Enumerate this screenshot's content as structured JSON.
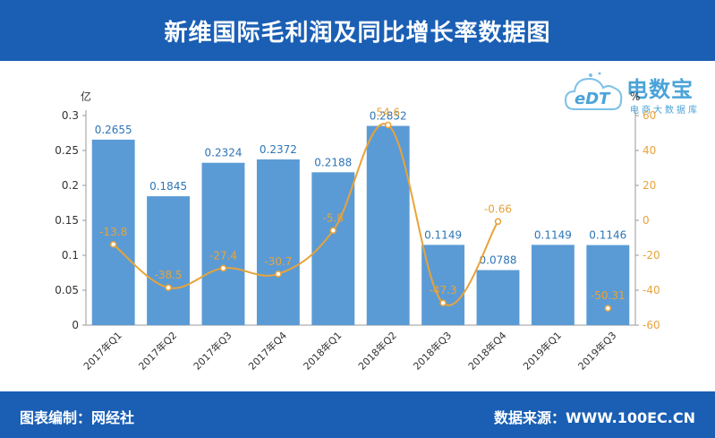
{
  "header": {
    "title": "新维国际毛利润及同比增长率数据图"
  },
  "footer": {
    "left": "图表编制：网经社",
    "right": "数据来源：WWW.100EC.CN"
  },
  "logo": {
    "brand": "电数宝",
    "sub": "电商大数据库",
    "cloud_text": "eDT"
  },
  "colors": {
    "bar": "#5b9bd5",
    "line": "#e8a33a",
    "header": "#1a5fb4",
    "bar_label": "#2e75b6",
    "line_label": "#e8a33a"
  },
  "chart_data": {
    "type": "bar",
    "categories": [
      "2017年Q1",
      "2017年Q2",
      "2017年Q3",
      "2017年Q4",
      "2018年Q1",
      "2018年Q2",
      "2018年Q3",
      "2018年Q4",
      "2019年Q1",
      "2019年Q3"
    ],
    "series": [
      {
        "name": "毛利润",
        "type": "bar",
        "axis": "left",
        "values": [
          0.2655,
          0.1845,
          0.2324,
          0.2372,
          0.2188,
          0.2852,
          0.1149,
          0.0788,
          0.1149,
          0.1146
        ],
        "labels": [
          "0.2655",
          "0.1845",
          "0.2324",
          "0.2372",
          "0.2188",
          "0.2852",
          "0.1149",
          "0.0788",
          "0.1149",
          "0.1146"
        ]
      },
      {
        "name": "同比增长率",
        "type": "line",
        "axis": "right",
        "values": [
          -13.8,
          -38.5,
          -27.4,
          -30.7,
          -5.8,
          54.6,
          -47.3,
          -0.66,
          null,
          -50.31
        ],
        "labels": [
          "-13.8",
          "-38.5",
          "-27.4",
          "-30.7",
          "-5.8",
          "54.6",
          "-47.3",
          "-0.66",
          "",
          "-50.31"
        ]
      }
    ],
    "y_left": {
      "unit": "亿",
      "ylim": [
        0,
        0.3
      ],
      "ticks": [
        "0",
        "0.05",
        "0.1",
        "0.15",
        "0.2",
        "0.25",
        "0.3"
      ],
      "tick_values": [
        0,
        0.05,
        0.1,
        0.15,
        0.2,
        0.25,
        0.3
      ]
    },
    "y_right": {
      "unit": "%",
      "ylim": [
        -60,
        60
      ],
      "ticks": [
        "-60",
        "-40",
        "-20",
        "0",
        "20",
        "40",
        "60"
      ],
      "tick_values": [
        -60,
        -40,
        -20,
        0,
        20,
        40,
        60
      ]
    },
    "grid": false,
    "legend": "none"
  }
}
